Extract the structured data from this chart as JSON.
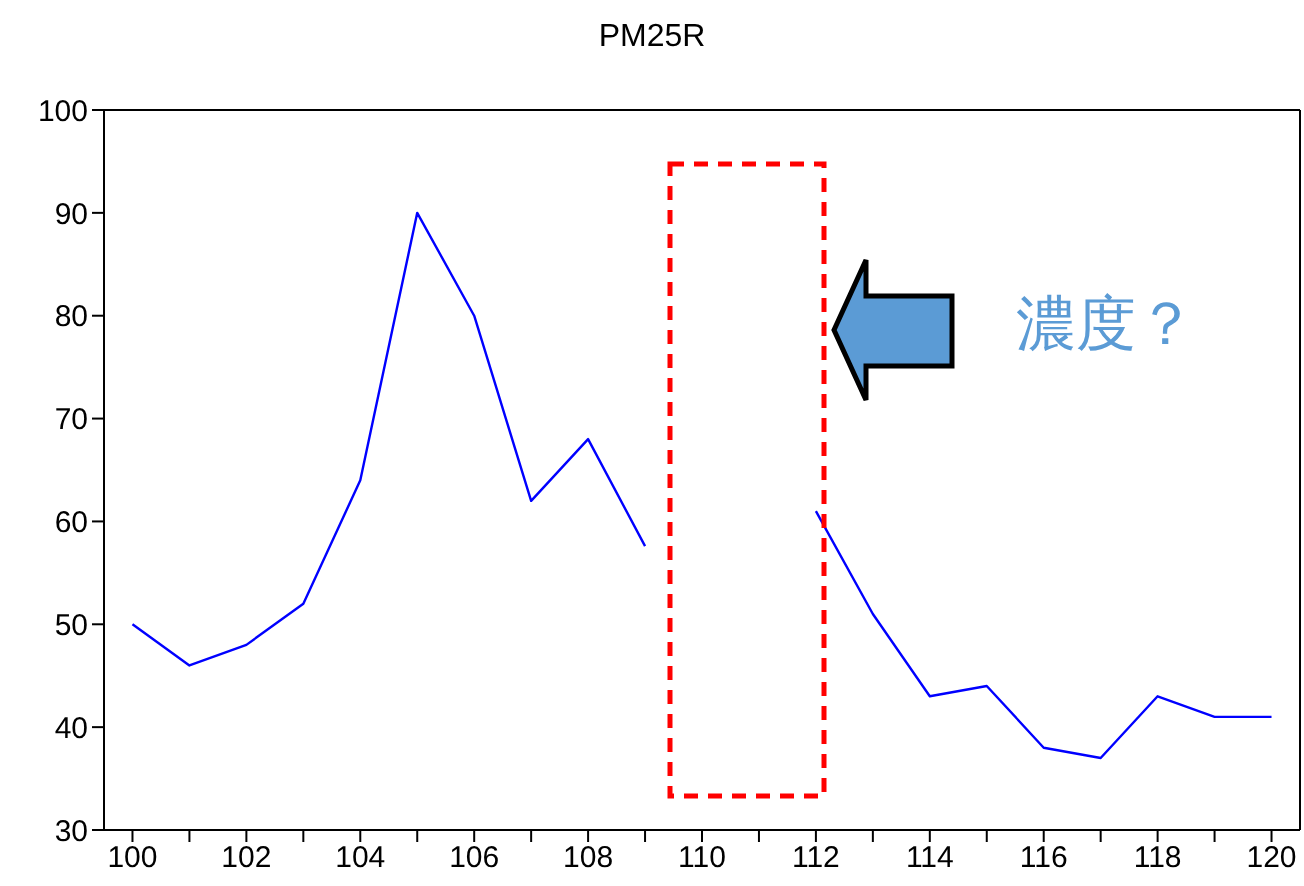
{
  "chart_data": {
    "type": "line",
    "title": "PM25R",
    "x": [
      100,
      101,
      102,
      103,
      104,
      105,
      106,
      107,
      108,
      109,
      110,
      111,
      112,
      113,
      114,
      115,
      116,
      117,
      118,
      119,
      120
    ],
    "series": [
      {
        "color": "#0000ff",
        "values": [
          50,
          46,
          48,
          52,
          64,
          90,
          80,
          62,
          68,
          57.6,
          null,
          null,
          61,
          51,
          43,
          44,
          38,
          37,
          43,
          41,
          41
        ]
      }
    ],
    "xlim": [
      99.5,
      120.5
    ],
    "xticks": [
      100,
      {
        "value": 101,
        "label": null
      },
      102,
      {
        "value": 103,
        "label": null
      },
      104,
      {
        "value": 105,
        "label": null
      },
      106,
      {
        "value": 107,
        "label": null
      },
      108,
      {
        "value": 109,
        "label": null
      },
      110,
      {
        "value": 111,
        "label": null
      },
      112,
      {
        "value": 113,
        "label": null
      },
      114,
      {
        "value": 115,
        "label": null
      },
      116,
      {
        "value": 117,
        "label": null
      },
      118,
      {
        "value": 119,
        "label": null
      },
      120
    ],
    "ylim": [
      30,
      100
    ],
    "yticks": [
      30,
      40,
      50,
      60,
      70,
      80,
      90,
      100
    ],
    "marker": "none",
    "line_style": "solid",
    "annotations": [
      "濃度？"
    ]
  }
}
